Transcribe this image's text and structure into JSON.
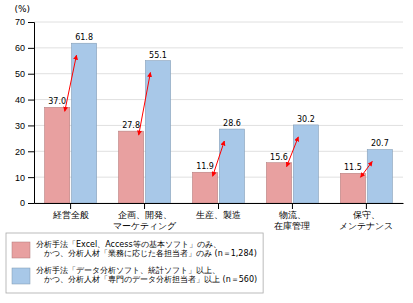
{
  "chart_data": {
    "type": "bar",
    "ylabel": "(%)",
    "categories": [
      "経営全般",
      "企画、開発、\nマーケティング",
      "生産、製造",
      "物流、\n在庫管理",
      "保守、\nメンテナンス"
    ],
    "series": [
      {
        "name": "分析手法「Excel、Access等の基本ソフト」のみ、\n　かつ、分析人材「業務に応じた各担当者」のみ (n＝1,284)",
        "color": "#E8A0A0",
        "values": [
          37.0,
          27.8,
          11.9,
          15.6,
          11.5
        ],
        "value_labels": [
          "37.0",
          "27.8",
          "11.9",
          "15.6",
          "11.5"
        ]
      },
      {
        "name": "分析手法「データ分析ソフト、統計ソフト」以上、\n　かつ、分析人材「専門のデータ分析担当者」以上 (n＝560)",
        "color": "#A8C8E8",
        "values": [
          61.8,
          55.1,
          28.6,
          30.2,
          20.7
        ],
        "value_labels": [
          "61.8",
          "55.1",
          "28.6",
          "30.2",
          "20.7"
        ]
      }
    ],
    "ylim": [
      0,
      70
    ],
    "yticks": [
      0,
      10,
      20,
      30,
      40,
      50,
      60,
      70
    ],
    "grid": true,
    "data_labels": true,
    "legend": "bottom"
  }
}
